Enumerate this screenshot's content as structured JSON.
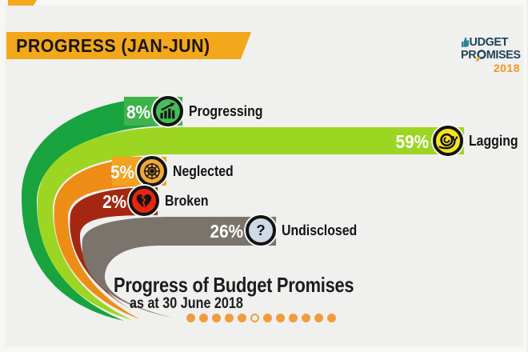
{
  "page_bg": "#f0f0ee",
  "banner": {
    "label": "PROGRESS (JAN-JUN)",
    "bg": "#f3a81b",
    "text_color": "#1a1510"
  },
  "logo": {
    "word1": "UDGET",
    "word1_display": "BUDGET",
    "word2_pre": "PR",
    "word2_post": "MISES",
    "word2_display": "PROMISES",
    "year": "2018",
    "navy": "#1d4456",
    "teal": "#2f8294",
    "orange": "#f7941e"
  },
  "chart_data": {
    "type": "bar",
    "orientation": "horizontal",
    "title": "Progress of Budget Promises",
    "subtitle": "as at 30 June 2018",
    "categories": [
      "Progressing",
      "Lagging",
      "Neglected",
      "Broken",
      "Undisclosed"
    ],
    "values": [
      8,
      59,
      5,
      2,
      26
    ],
    "unit": "%",
    "colors": [
      "#18a33f",
      "#9cd622",
      "#ee8d15",
      "#a52712",
      "#7b746c"
    ],
    "bar_end_highlights": [
      "#3eb34b",
      null,
      "#f4a21f",
      null,
      null
    ],
    "legend": false,
    "grid": false
  },
  "bars": [
    {
      "pct": "8%",
      "label": "Progressing",
      "icon": "growth-chart-icon",
      "badge_color": "#46bd58"
    },
    {
      "pct": "59%",
      "label": "Lagging",
      "icon": "snail-icon",
      "badge_color": "#f6e41c"
    },
    {
      "pct": "5%",
      "label": "Neglected",
      "icon": "spider-web-icon",
      "badge_color": "#eea93c"
    },
    {
      "pct": "2%",
      "label": "Broken",
      "icon": "broken-heart-icon",
      "badge_color": "#e8250e"
    },
    {
      "pct": "26%",
      "label": "Undisclosed",
      "icon": "question-mark-icon",
      "badge_color": "#cdd9e4",
      "glyph": "?"
    }
  ],
  "footer": {
    "title": "Progress of Budget Promises",
    "subtitle": "as at 30 June 2018"
  },
  "pagination": {
    "count": 12,
    "hollow_index": 6,
    "dot_color": "#f29b3e"
  }
}
